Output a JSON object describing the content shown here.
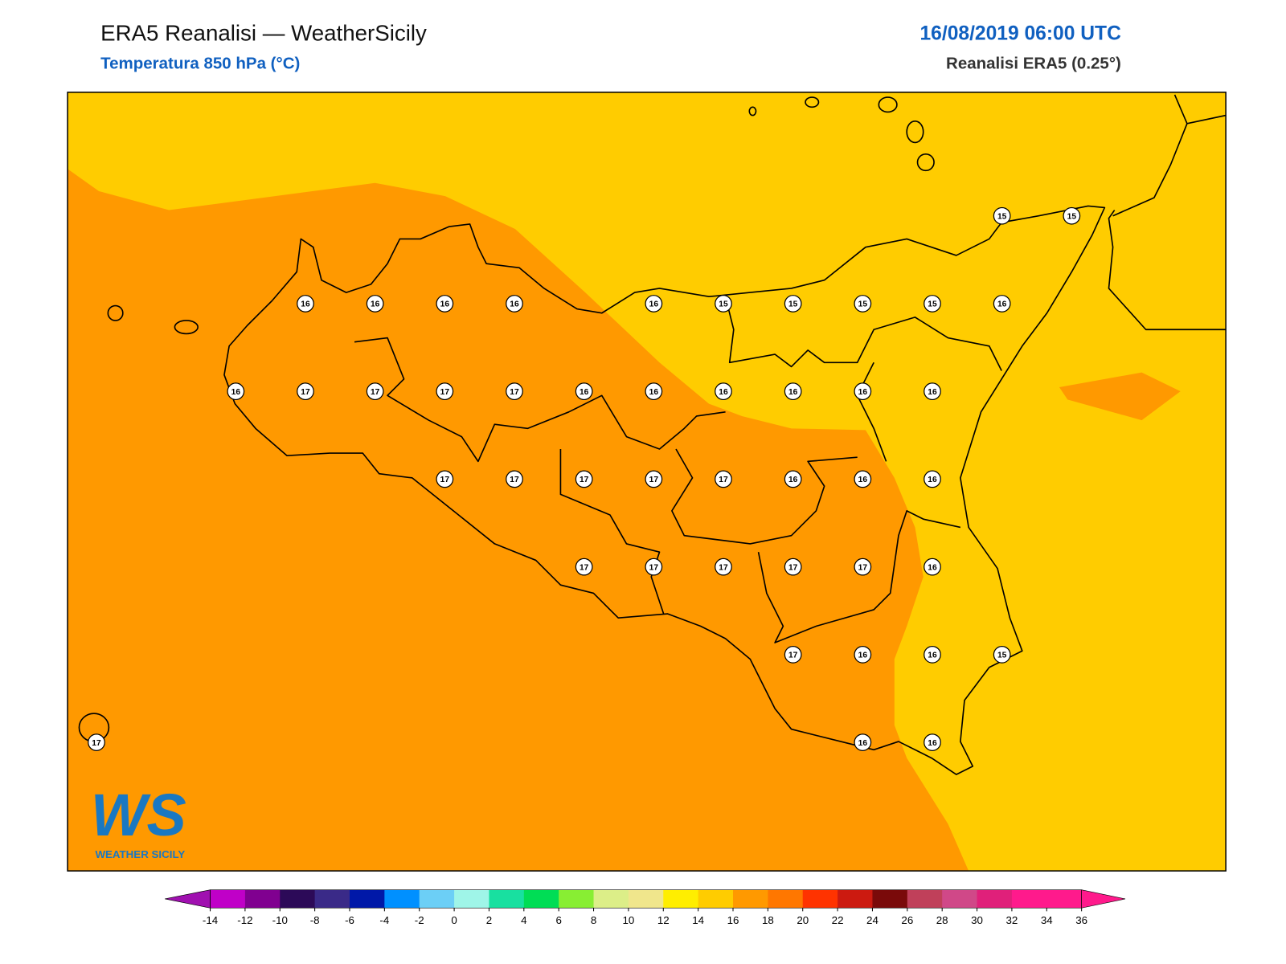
{
  "header": {
    "title": "ERA5 Reanalisi — WeatherSicily",
    "subtitle": "Temperatura 850 hPa (°C)",
    "datetime": "16/08/2019 06:00 UTC",
    "source": "Reanalisi ERA5 (0.25°)"
  },
  "logo": {
    "mark": "WS",
    "name": "WEATHER SICILY"
  },
  "grid": {
    "rows": [
      [
        null,
        null,
        null,
        null,
        null,
        null,
        null,
        null,
        null,
        null,
        null,
        null,
        null,
        15,
        15
      ],
      [
        null,
        null,
        null,
        16,
        16,
        16,
        16,
        null,
        16,
        15,
        15,
        15,
        15,
        16,
        null
      ],
      [
        null,
        null,
        16,
        17,
        17,
        17,
        17,
        16,
        16,
        16,
        16,
        16,
        16,
        null,
        null
      ],
      [
        null,
        null,
        null,
        null,
        null,
        17,
        17,
        17,
        17,
        17,
        16,
        16,
        16,
        null,
        null
      ],
      [
        null,
        null,
        null,
        null,
        null,
        null,
        null,
        17,
        17,
        17,
        17,
        17,
        16,
        null,
        null
      ],
      [
        null,
        null,
        null,
        null,
        null,
        null,
        null,
        null,
        null,
        null,
        17,
        16,
        16,
        15,
        null
      ],
      [
        17,
        null,
        null,
        null,
        null,
        null,
        null,
        null,
        null,
        null,
        null,
        16,
        16,
        null,
        null
      ]
    ]
  },
  "colorbar": {
    "ticks": [
      -14,
      -12,
      -10,
      -8,
      -6,
      -4,
      -2,
      0,
      2,
      4,
      6,
      8,
      10,
      12,
      14,
      16,
      18,
      20,
      22,
      24,
      26,
      28,
      30,
      32,
      34,
      36
    ],
    "colors": [
      "#c000c8",
      "#800090",
      "#2c0a58",
      "#3a2a88",
      "#0018a8",
      "#0090ff",
      "#6ccff6",
      "#9ff5e8",
      "#18e0a0",
      "#00dd55",
      "#88ee33",
      "#dcee88",
      "#f0e68c",
      "#ffee00",
      "#ffcc00",
      "#ff9900",
      "#ff7700",
      "#ff3300",
      "#cc1a10",
      "#7a0a0a",
      "#c0405a",
      "#d04888",
      "#e0207a",
      "#ff1a8c",
      "#ff1a8c"
    ],
    "under": "#a010b0",
    "over": "#ff1a8c"
  }
}
